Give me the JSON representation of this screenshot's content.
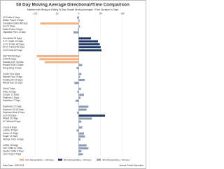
{
  "chart_data": {
    "type": "bar",
    "orientation": "horizontal",
    "title": "50 Day Moving Average Directional/Time Comparison",
    "subtitle": "Markets with Rising or Falling 50 Day Simple Moving Averages / Time Duration in Days",
    "categories": [
      "US Dollar 4 Days",
      "British Pound 2 Days",
      "Canadian Dollar 88 Days",
      "Euro 3 Days",
      "Swiss Franc 2 Days",
      "Japanese Yen 12 Days",
      null,
      "Eurodollar 28 Days",
      "5 Yr T-Note 44 Days",
      "10 Yr T-Note 48 Days",
      "30 Yr T-Bond 50 Days",
      "Fed Funds 52 Days",
      null,
      "S&P 500 96 Days",
      "DJIA 90 Days",
      "Nasdaq 100 78 Days",
      "Russell 2000 8 Days",
      "Hang Seng 5 Days",
      null,
      "Crude Oil 6 Days",
      "Natural Gas 3 Days",
      "Heating Oil 14 Days",
      "RBOB Gas 10 Days",
      null,
      "Gold 5 Days",
      "Silver 3 Days",
      "Copper 12 Days",
      "Platinum 4 Days",
      "Palladium 7 Days",
      null,
      "Soybeans 22 Days",
      "Soybean Oil 18 Days",
      "Soybean Meal 4 Days",
      "Corn 60 Days",
      "Wheat 30 Days",
      "KC Wheat 6 Days",
      null,
      "Cocoa 8 Days",
      "Lumber 5 Days",
      "Cotton 12 Days",
      "Sugar 14 Days",
      "Orange Juice 4 Days",
      null,
      "Coffee 18 Days",
      "Live Cattle 22 Days",
      "Feeder Cattle 6 Days",
      "Lean Hogs 9 Days"
    ],
    "values": [
      -4,
      2,
      -88,
      3,
      -2,
      -12,
      null,
      28,
      44,
      48,
      50,
      52,
      null,
      -96,
      -90,
      -78,
      8,
      -5,
      null,
      6,
      3,
      14,
      -10,
      null,
      5,
      -3,
      12,
      4,
      -7,
      null,
      22,
      18,
      -4,
      60,
      30,
      6,
      null,
      8,
      -5,
      12,
      14,
      4,
      null,
      18,
      22,
      6,
      9
    ],
    "colors": [
      "#8e9bb5",
      "#8e9bb5",
      "#f4b183",
      "#8e9bb5",
      "#8e9bb5",
      "#8e9bb5",
      null,
      "#1f3864",
      "#1f3864",
      "#1f3864",
      "#1f3864",
      "#1f3864",
      null,
      "#f4b183",
      "#f4b183",
      "#f4b183",
      "#8e9bb5",
      "#8e9bb5",
      null,
      "#8e9bb5",
      "#8e9bb5",
      "#8e9bb5",
      "#8e9bb5",
      null,
      "#8e9bb5",
      "#8e9bb5",
      "#8e9bb5",
      "#8e9bb5",
      "#8e9bb5",
      null,
      "#8e9bb5",
      "#8e9bb5",
      "#8e9bb5",
      "#1f3864",
      "#8e9bb5",
      "#8e9bb5",
      null,
      "#8e9bb5",
      "#8e9bb5",
      "#8e9bb5",
      "#8e9bb5",
      "#8e9bb5",
      null,
      "#8e9bb5",
      "#8e9bb5",
      "#8e9bb5",
      "#8e9bb5"
    ],
    "xlim": [
      -100,
      140
    ],
    "xticks": [
      -100,
      -50,
      0,
      50,
      100
    ],
    "grid": true,
    "legend": [
      {
        "name": "10% Rising/Falling > 100 Days",
        "color": "#f4b183"
      },
      {
        "name": "50% Rising/Falling > 50 Days",
        "color": "#1f3864"
      },
      {
        "name": "40% Rising/Falling < 50 Days",
        "color": "#8e9bb5"
      }
    ],
    "footer_left": "Data Date: 12/6/2013",
    "footer_right": "Source: David Saunders"
  }
}
